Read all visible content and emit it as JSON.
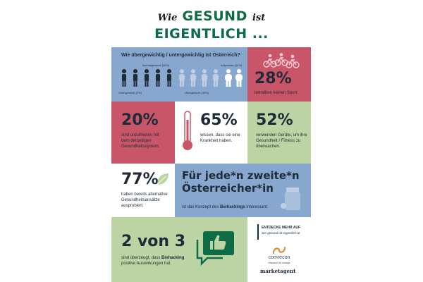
{
  "header": {
    "title_pre": "Wie",
    "title_word1": "GESUND",
    "title_post": "ist",
    "title_line2": "EIGENTLICH ..."
  },
  "weight": {
    "question": "Wie übergewichtig / untergewichtig ist Österreich?",
    "normal_label": "Normalgewicht (40%)",
    "adipositas_label": "Adipositas (12%)",
    "under_label": "Untergewicht (2%)",
    "over_label": "Übergewicht (46%)"
  },
  "sport": {
    "value": "28%",
    "text": "betreiben keinen Sport."
  },
  "unzufrieden": {
    "value": "20%",
    "text1": "sind unzufrieden mit",
    "text2": "dem derzeitigen",
    "text3": "Gesundheitssystem."
  },
  "krankheit": {
    "value": "65%",
    "text1": "wissen, dass sie eine",
    "text2": "Krankheit haben."
  },
  "geraete": {
    "value": "52%",
    "text1": "verwenden Geräte, um ihre",
    "text2": "Gesundheit / Fitness zu",
    "text3": "überwachen."
  },
  "alternativ": {
    "value": "77%",
    "text1": "haben bereits alternative",
    "text2": "Gesundheitsansätze",
    "text3": "ausprobiert."
  },
  "biohacking": {
    "headline1": "Für jede*n zweite*n",
    "headline2": "Österreicher*in",
    "text_pre": "ist das Konzept des ",
    "text_bold": "Biohackings",
    "text_post": " interessant."
  },
  "zwei_von_drei": {
    "value": "2 von 3",
    "text1_pre": "sind überzeugt, dass ",
    "text1_bold": "Biohacking",
    "text2": "positive Auswirkungen hat."
  },
  "footer": {
    "cta": "ENTDECKE MEHR AUF",
    "url": "wie-gesund-ist-eigentlich.at",
    "brand1": "comrecon",
    "brand1_sub": "research for change",
    "brand2": "marketagent"
  },
  "colors": {
    "blue": "#87a7cf",
    "red": "#c95568",
    "green": "#bcd4a3",
    "brand_green": "#0d6b45",
    "navy": "#1d2a38"
  }
}
